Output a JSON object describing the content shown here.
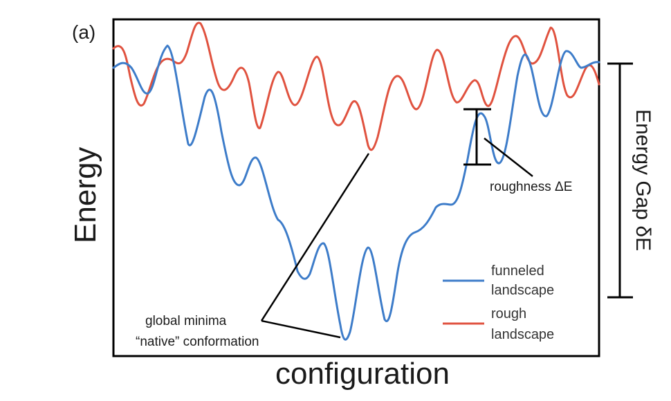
{
  "panel_label": "(a)",
  "axes": {
    "xlabel": "configuration",
    "ylabel": "Energy"
  },
  "annotations": {
    "roughness": "roughness ΔE",
    "global_minima_line1": "global minima",
    "global_minima_line2": "“native” conformation",
    "energy_gap": "Energy Gap δE"
  },
  "legend": {
    "funneled_line1": "funneled",
    "funneled_line2": "landscape",
    "rough_line1": "rough",
    "rough_line2": "landscape"
  },
  "colors": {
    "funneled": "#3d7cc9",
    "rough": "#e0523f",
    "frame": "#000000"
  }
}
